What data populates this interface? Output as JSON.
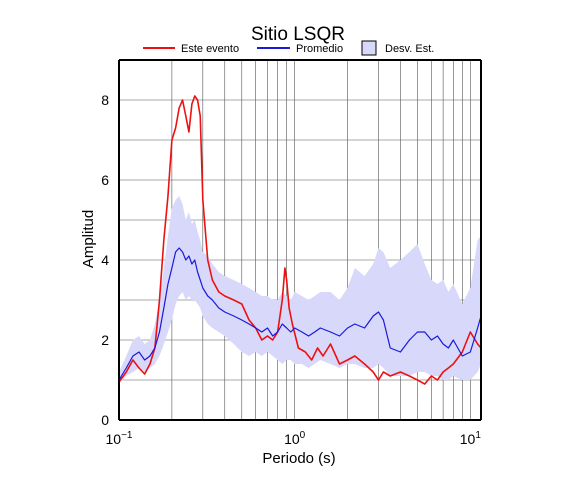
{
  "chart_data": {
    "type": "line",
    "title": "Sitio LSQR",
    "xlabel": "Periodo (s)",
    "ylabel": "Amplitud",
    "x_scale": "log",
    "xlim": [
      0.1,
      11.5
    ],
    "ylim": [
      0,
      9
    ],
    "x_ticks": [
      {
        "value": 0.1,
        "base": "10",
        "exp": "−1"
      },
      {
        "value": 1,
        "base": "10",
        "exp": "0"
      },
      {
        "value": 10,
        "base": "10",
        "exp": "1"
      }
    ],
    "y_ticks": [
      0,
      2,
      4,
      6,
      8
    ],
    "grid": true,
    "legend_position": "top",
    "legend": [
      {
        "label": "Este evento",
        "kind": "line",
        "color": "#ee1111"
      },
      {
        "label": "Promedio",
        "kind": "line",
        "color": "#1a1ad8"
      },
      {
        "label": "Desv. Est.",
        "kind": "band",
        "color": "#d8d8fa"
      }
    ],
    "series": [
      {
        "name": "Este evento",
        "color": "#ee1111",
        "x": [
          0.1,
          0.11,
          0.12,
          0.13,
          0.14,
          0.15,
          0.16,
          0.17,
          0.18,
          0.19,
          0.2,
          0.21,
          0.22,
          0.23,
          0.24,
          0.25,
          0.26,
          0.27,
          0.28,
          0.29,
          0.3,
          0.32,
          0.34,
          0.37,
          0.4,
          0.45,
          0.5,
          0.55,
          0.6,
          0.65,
          0.7,
          0.75,
          0.8,
          0.85,
          0.88,
          0.9,
          0.93,
          0.97,
          1.05,
          1.15,
          1.25,
          1.35,
          1.45,
          1.6,
          1.8,
          2.0,
          2.2,
          2.5,
          2.8,
          3.0,
          3.2,
          3.5,
          4.0,
          4.5,
          5.0,
          5.5,
          6.0,
          6.5,
          7.0,
          7.5,
          8.0,
          9.0,
          10.0,
          11.0,
          11.5
        ],
        "values": [
          0.95,
          1.2,
          1.5,
          1.3,
          1.15,
          1.4,
          1.8,
          3.0,
          4.5,
          5.6,
          7.0,
          7.3,
          7.8,
          8.0,
          7.6,
          7.2,
          7.9,
          8.1,
          8.0,
          7.6,
          5.5,
          4.0,
          3.5,
          3.2,
          3.1,
          3.0,
          2.9,
          2.5,
          2.3,
          2.0,
          2.1,
          2.0,
          2.2,
          3.0,
          3.8,
          3.5,
          2.8,
          2.4,
          1.8,
          1.7,
          1.5,
          1.8,
          1.6,
          1.9,
          1.4,
          1.5,
          1.6,
          1.4,
          1.2,
          1.0,
          1.2,
          1.1,
          1.2,
          1.1,
          1.0,
          0.9,
          1.1,
          1.0,
          1.2,
          1.3,
          1.4,
          1.7,
          2.2,
          1.9,
          1.8
        ]
      },
      {
        "name": "Promedio",
        "color": "#1a1ad8",
        "x": [
          0.1,
          0.11,
          0.12,
          0.13,
          0.14,
          0.15,
          0.16,
          0.17,
          0.18,
          0.19,
          0.2,
          0.21,
          0.22,
          0.23,
          0.24,
          0.25,
          0.26,
          0.27,
          0.28,
          0.29,
          0.3,
          0.32,
          0.34,
          0.37,
          0.4,
          0.45,
          0.5,
          0.55,
          0.6,
          0.65,
          0.7,
          0.75,
          0.8,
          0.85,
          0.9,
          0.95,
          1.0,
          1.1,
          1.2,
          1.3,
          1.4,
          1.6,
          1.8,
          2.0,
          2.2,
          2.5,
          2.8,
          3.0,
          3.2,
          3.5,
          4.0,
          4.5,
          5.0,
          5.5,
          6.0,
          6.5,
          7.0,
          7.5,
          8.0,
          9.0,
          10.0,
          11.0,
          11.5
        ],
        "values": [
          1.0,
          1.3,
          1.6,
          1.7,
          1.5,
          1.6,
          1.8,
          2.2,
          2.8,
          3.4,
          3.8,
          4.2,
          4.3,
          4.2,
          4.0,
          4.1,
          3.9,
          4.0,
          3.7,
          3.5,
          3.3,
          3.1,
          3.0,
          2.8,
          2.7,
          2.6,
          2.5,
          2.4,
          2.3,
          2.2,
          2.3,
          2.1,
          2.2,
          2.4,
          2.3,
          2.2,
          2.3,
          2.2,
          2.1,
          2.2,
          2.3,
          2.2,
          2.1,
          2.3,
          2.4,
          2.3,
          2.6,
          2.7,
          2.5,
          1.8,
          1.7,
          2.0,
          2.2,
          2.2,
          2.0,
          2.1,
          1.9,
          1.8,
          2.0,
          1.6,
          1.7,
          2.3,
          2.6
        ]
      }
    ],
    "band": {
      "name": "Desv. Est.",
      "color": "#d8d8fa",
      "x": [
        0.1,
        0.11,
        0.12,
        0.13,
        0.14,
        0.15,
        0.16,
        0.17,
        0.18,
        0.19,
        0.2,
        0.21,
        0.22,
        0.23,
        0.24,
        0.25,
        0.26,
        0.27,
        0.28,
        0.29,
        0.3,
        0.32,
        0.34,
        0.37,
        0.4,
        0.45,
        0.5,
        0.55,
        0.6,
        0.65,
        0.7,
        0.75,
        0.8,
        0.85,
        0.9,
        0.95,
        1.0,
        1.1,
        1.2,
        1.3,
        1.4,
        1.6,
        1.8,
        2.0,
        2.2,
        2.5,
        2.8,
        3.0,
        3.2,
        3.5,
        4.0,
        4.5,
        5.0,
        5.5,
        6.0,
        6.5,
        7.0,
        7.5,
        8.0,
        9.0,
        10.0,
        11.0,
        11.5
      ],
      "lower": [
        0.9,
        1.1,
        1.2,
        1.3,
        1.2,
        1.3,
        1.4,
        1.6,
        1.9,
        2.2,
        2.5,
        2.9,
        3.1,
        3.2,
        3.0,
        3.1,
        3.0,
        3.0,
        2.9,
        2.8,
        2.6,
        2.4,
        2.3,
        2.2,
        2.1,
        1.9,
        1.7,
        1.6,
        1.7,
        1.6,
        1.7,
        1.6,
        1.5,
        1.4,
        1.5,
        1.5,
        1.4,
        1.4,
        1.3,
        1.4,
        1.5,
        1.4,
        1.3,
        1.4,
        1.4,
        1.3,
        1.3,
        1.4,
        1.3,
        1.1,
        1.1,
        1.1,
        1.2,
        1.2,
        1.1,
        1.1,
        1.0,
        1.0,
        1.1,
        1.0,
        1.0,
        1.2,
        1.4
      ],
      "upper": [
        1.2,
        1.6,
        2.0,
        2.1,
        1.9,
        2.0,
        2.4,
        3.0,
        3.8,
        4.6,
        5.3,
        5.5,
        5.6,
        5.4,
        5.0,
        5.2,
        4.9,
        5.0,
        4.7,
        4.5,
        4.2,
        4.1,
        3.9,
        3.7,
        3.6,
        3.5,
        3.4,
        3.3,
        3.2,
        3.1,
        3.1,
        3.0,
        3.0,
        3.2,
        3.1,
        3.0,
        3.2,
        3.1,
        3.0,
        3.1,
        3.2,
        3.2,
        3.0,
        3.3,
        3.8,
        3.6,
        3.9,
        4.3,
        4.2,
        3.8,
        4.0,
        4.2,
        4.4,
        3.9,
        3.5,
        3.4,
        3.5,
        3.2,
        3.4,
        2.9,
        3.3,
        4.5,
        4.6
      ]
    }
  }
}
